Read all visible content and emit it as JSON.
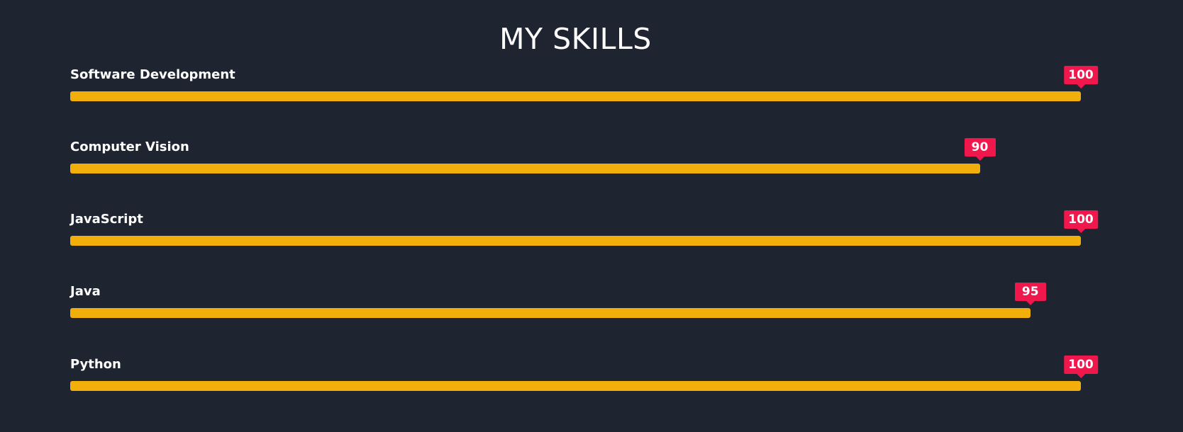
{
  "page": {
    "title": "MY SKILLS"
  },
  "skills": [
    {
      "label": "Software Development",
      "value": "100",
      "percent": 100
    },
    {
      "label": "Computer Vision",
      "value": "90",
      "percent": 90
    },
    {
      "label": "JavaScript",
      "value": "100",
      "percent": 100
    },
    {
      "label": "Java",
      "value": "95",
      "percent": 95
    },
    {
      "label": "Python",
      "value": "100",
      "percent": 100
    }
  ],
  "colors": {
    "background": "#1e2430",
    "bar": "#f2ae0b",
    "badge": "#f0174c",
    "text": "#ffffff"
  }
}
